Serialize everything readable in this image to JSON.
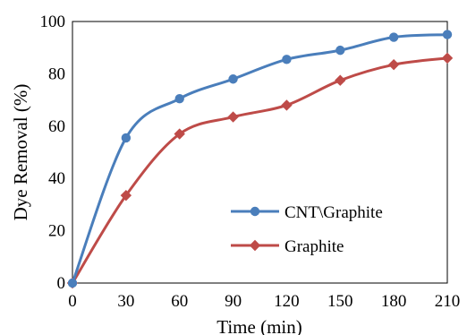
{
  "chart_data": {
    "type": "line",
    "title": "",
    "xlabel": "Time (min)",
    "ylabel": "Dye Removal (%)",
    "x": [
      0,
      30,
      60,
      90,
      120,
      150,
      180,
      210
    ],
    "xticks": [
      "0",
      "30",
      "60",
      "90",
      "120",
      "150",
      "180",
      "210"
    ],
    "yticks": [
      "0",
      "20",
      "40",
      "60",
      "80",
      "100"
    ],
    "xlim": [
      0,
      210
    ],
    "ylim": [
      0,
      100
    ],
    "grid": false,
    "legend_position": "center-right",
    "series": [
      {
        "name": "CNT\\Graphite",
        "values": [
          0,
          55.5,
          70.5,
          78,
          85.5,
          89,
          94,
          95
        ],
        "color": "#4a7ebb",
        "marker": "circle"
      },
      {
        "name": "Graphite",
        "values": [
          0,
          33.5,
          57,
          63.5,
          68,
          77.5,
          83.5,
          86
        ],
        "color": "#be4b48",
        "marker": "diamond"
      }
    ]
  }
}
